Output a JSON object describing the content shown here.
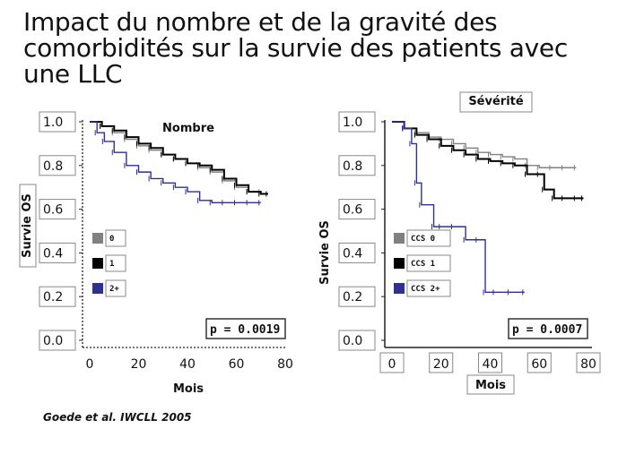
{
  "slide": {
    "title": "Impact du nombre et de la gravité des comorbidités sur la survie des patients avec une LLC",
    "citation": "Goede et al. IWCLL 2005"
  },
  "chart_data": [
    {
      "type": "line",
      "title": "Nombre",
      "xlabel": "Mois",
      "ylabel": "Survie OS",
      "xlim": [
        0,
        80
      ],
      "ylim": [
        0,
        1.0
      ],
      "x_ticks": [
        "0",
        "20",
        "40",
        "60",
        "80"
      ],
      "y_ticks": [
        "0.0",
        "0.2",
        "0.4",
        "0.6",
        "0.8",
        "1.0"
      ],
      "legend_placement": "left",
      "p_value": "p = 0.0019",
      "series": [
        {
          "name": "0",
          "color": "#808080",
          "step": true,
          "x": [
            0,
            5,
            10,
            15,
            20,
            25,
            30,
            35,
            40,
            45,
            50,
            55,
            60,
            65,
            70
          ],
          "y": [
            1.0,
            0.98,
            0.95,
            0.92,
            0.89,
            0.87,
            0.85,
            0.83,
            0.81,
            0.79,
            0.77,
            0.73,
            0.7,
            0.68,
            0.68
          ]
        },
        {
          "name": "1",
          "color": "#000000",
          "step": true,
          "x": [
            0,
            5,
            10,
            15,
            20,
            25,
            30,
            35,
            40,
            45,
            50,
            55,
            60,
            65,
            70,
            73
          ],
          "y": [
            1.0,
            0.98,
            0.96,
            0.93,
            0.9,
            0.88,
            0.85,
            0.83,
            0.81,
            0.8,
            0.78,
            0.74,
            0.71,
            0.68,
            0.67,
            0.67
          ]
        },
        {
          "name": "2+",
          "color": "#2e3192",
          "step": true,
          "x": [
            0,
            3,
            6,
            10,
            15,
            20,
            25,
            30,
            35,
            40,
            45,
            50,
            55,
            60,
            65,
            70
          ],
          "y": [
            1.0,
            0.95,
            0.91,
            0.86,
            0.8,
            0.77,
            0.74,
            0.72,
            0.7,
            0.68,
            0.64,
            0.63,
            0.63,
            0.63,
            0.63,
            0.63
          ]
        }
      ]
    },
    {
      "type": "line",
      "title": "Sévérité",
      "xlabel": "Mois",
      "ylabel": "Survie OS",
      "xlim": [
        0,
        80
      ],
      "ylim": [
        0,
        1.0
      ],
      "x_ticks": [
        "0",
        "20",
        "40",
        "60",
        "80"
      ],
      "y_ticks": [
        "0.0",
        "0.2",
        "0.4",
        "0.6",
        "0.8",
        "1.0"
      ],
      "legend_placement": "left",
      "p_value": "p = 0.0007",
      "series": [
        {
          "name": "CCS 0",
          "color": "#808080",
          "step": true,
          "x": [
            0,
            5,
            10,
            15,
            20,
            25,
            30,
            35,
            40,
            45,
            50,
            55,
            60,
            65,
            70,
            75
          ],
          "y": [
            1.0,
            0.97,
            0.95,
            0.93,
            0.92,
            0.9,
            0.88,
            0.86,
            0.85,
            0.84,
            0.83,
            0.8,
            0.79,
            0.79,
            0.79,
            0.79
          ]
        },
        {
          "name": "CCS 1",
          "color": "#000000",
          "step": true,
          "x": [
            0,
            5,
            10,
            15,
            20,
            25,
            30,
            35,
            40,
            45,
            50,
            55,
            60,
            62,
            66,
            70,
            75,
            78
          ],
          "y": [
            1.0,
            0.97,
            0.94,
            0.92,
            0.89,
            0.87,
            0.85,
            0.83,
            0.82,
            0.81,
            0.8,
            0.76,
            0.76,
            0.69,
            0.65,
            0.65,
            0.65,
            0.65
          ]
        },
        {
          "name": "CCS 2+",
          "color": "#2e3192",
          "step": true,
          "x": [
            0,
            5,
            8,
            10,
            12,
            17,
            20,
            25,
            30,
            35,
            38,
            42,
            48,
            54
          ],
          "y": [
            1.0,
            0.97,
            0.9,
            0.72,
            0.62,
            0.52,
            0.52,
            0.52,
            0.46,
            0.46,
            0.22,
            0.22,
            0.22,
            0.22
          ]
        }
      ]
    }
  ]
}
